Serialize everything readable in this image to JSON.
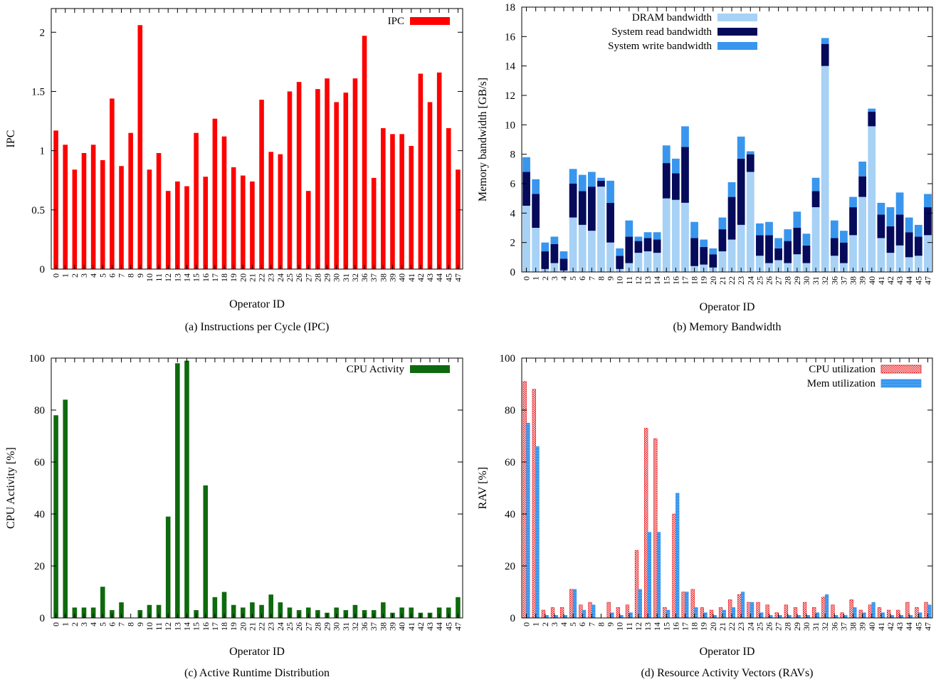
{
  "colors": {
    "ipc": "#ff0000",
    "dram": "#a7d1f5",
    "sys_read": "#050a5a",
    "sys_write": "#3996ee",
    "cpu_activity": "#0e6a0e",
    "cpu_util": "#e8161b",
    "mem_util": "#3996ee"
  },
  "chart_data": [
    {
      "id": "a",
      "type": "bar",
      "caption": "(a) Instructions per Cycle (IPC)",
      "xlabel": "Operator ID",
      "ylabel": "IPC",
      "ylim": [
        0,
        2.2
      ],
      "yticks": [
        0,
        0.5,
        1,
        1.5,
        2
      ],
      "ytick_labels": [
        "0",
        "0.5",
        "1",
        "1.5",
        "2"
      ],
      "legend_position": "top-right",
      "categories": [
        "0",
        "1",
        "2",
        "3",
        "4",
        "5",
        "6",
        "7",
        "8",
        "9",
        "10",
        "11",
        "12",
        "13",
        "14",
        "15",
        "16",
        "17",
        "18",
        "19",
        "20",
        "21",
        "22",
        "23",
        "24",
        "25",
        "26",
        "27",
        "28",
        "29",
        "30",
        "31",
        "32",
        "36",
        "37",
        "38",
        "39",
        "40",
        "41",
        "42",
        "43",
        "44",
        "45",
        "47"
      ],
      "series": [
        {
          "name": "IPC",
          "color_key": "ipc",
          "values": [
            1.17,
            1.05,
            0.84,
            0.98,
            1.05,
            0.92,
            1.44,
            0.87,
            1.15,
            2.06,
            0.84,
            0.98,
            0.66,
            0.74,
            0.7,
            1.15,
            0.78,
            1.27,
            1.12,
            0.86,
            0.79,
            0.74,
            1.43,
            0.99,
            0.97,
            1.5,
            1.58,
            0.66,
            1.52,
            1.61,
            1.41,
            1.49,
            1.61,
            1.97,
            0.77,
            1.19,
            1.14,
            1.14,
            1.04,
            1.65,
            1.41,
            1.66,
            1.19,
            0.84
          ]
        }
      ]
    },
    {
      "id": "b",
      "type": "bar",
      "stacked": true,
      "caption": "(b) Memory Bandwidth",
      "xlabel": "Operator ID",
      "ylabel": "Memory bandwidth [GB/s]",
      "ylim": [
        0,
        18
      ],
      "yticks": [
        0,
        2,
        4,
        6,
        8,
        10,
        12,
        14,
        16,
        18
      ],
      "ytick_labels": [
        "0",
        "2",
        "4",
        "6",
        "8",
        "10",
        "12",
        "14",
        "16",
        "18"
      ],
      "legend_position": "top",
      "categories": [
        "0",
        "1",
        "2",
        "3",
        "4",
        "5",
        "6",
        "7",
        "8",
        "9",
        "10",
        "11",
        "12",
        "13",
        "14",
        "15",
        "16",
        "17",
        "18",
        "19",
        "20",
        "21",
        "22",
        "23",
        "24",
        "25",
        "26",
        "27",
        "28",
        "29",
        "30",
        "31",
        "32",
        "36",
        "37",
        "38",
        "39",
        "40",
        "41",
        "42",
        "43",
        "44",
        "45",
        "47"
      ],
      "series": [
        {
          "name": "DRAM bandwidth",
          "color_key": "dram",
          "values": [
            4.5,
            3.0,
            0.2,
            0.6,
            0.1,
            3.7,
            3.2,
            2.8,
            5.8,
            2.0,
            0.2,
            0.6,
            1.3,
            1.4,
            1.3,
            5.0,
            4.9,
            4.7,
            0.4,
            0.5,
            0.3,
            1.4,
            2.2,
            3.2,
            6.8,
            1.1,
            0.6,
            0.8,
            0.6,
            1.2,
            0.6,
            4.4,
            14.0,
            1.1,
            0.6,
            2.5,
            5.1,
            9.9,
            2.3,
            1.3,
            1.8,
            1.0,
            1.1,
            2.5
          ]
        },
        {
          "name": "System read bandwidth",
          "color_key": "sys_read",
          "values": [
            2.3,
            2.3,
            1.2,
            1.3,
            0.8,
            2.3,
            2.3,
            3.0,
            0.4,
            2.7,
            0.9,
            1.8,
            0.8,
            0.9,
            0.9,
            2.4,
            1.8,
            3.8,
            1.9,
            1.2,
            0.9,
            1.5,
            2.9,
            4.5,
            1.2,
            1.4,
            1.9,
            0.8,
            1.5,
            1.8,
            1.2,
            1.1,
            1.5,
            1.2,
            1.4,
            1.9,
            1.4,
            1.0,
            1.6,
            1.8,
            2.1,
            1.7,
            1.3,
            1.9
          ]
        },
        {
          "name": "System write  bandwidth",
          "color_key": "sys_write",
          "values": [
            1.0,
            1.0,
            0.6,
            0.5,
            0.5,
            1.0,
            1.1,
            1.0,
            0.2,
            1.5,
            0.5,
            1.1,
            0.3,
            0.4,
            0.5,
            1.2,
            1.0,
            1.4,
            1.1,
            0.5,
            0.4,
            0.8,
            1.0,
            1.5,
            0.2,
            0.8,
            0.9,
            0.7,
            0.8,
            1.1,
            0.8,
            0.9,
            0.4,
            1.2,
            0.8,
            0.7,
            1.0,
            0.2,
            0.8,
            1.3,
            1.5,
            1.0,
            0.8,
            0.9
          ]
        }
      ]
    },
    {
      "id": "c",
      "type": "bar",
      "caption": "(c) Active Runtime Distribution",
      "xlabel": "Operator ID",
      "ylabel": "CPU Activity [%]",
      "ylim": [
        0,
        100
      ],
      "yticks": [
        0,
        20,
        40,
        60,
        80,
        100
      ],
      "ytick_labels": [
        "0",
        "20",
        "40",
        "60",
        "80",
        "100"
      ],
      "legend_position": "top-right",
      "categories": [
        "0",
        "1",
        "2",
        "3",
        "4",
        "5",
        "6",
        "7",
        "8",
        "9",
        "10",
        "11",
        "12",
        "13",
        "14",
        "15",
        "16",
        "17",
        "18",
        "19",
        "20",
        "21",
        "22",
        "23",
        "24",
        "25",
        "26",
        "27",
        "28",
        "29",
        "30",
        "31",
        "32",
        "36",
        "37",
        "38",
        "39",
        "40",
        "41",
        "42",
        "43",
        "44",
        "45",
        "47"
      ],
      "series": [
        {
          "name": "CPU Activity",
          "color_key": "cpu_activity",
          "values": [
            78,
            84,
            4,
            4,
            4,
            12,
            3,
            6,
            0,
            3,
            5,
            5,
            39,
            98,
            99,
            3,
            51,
            8,
            10,
            5,
            4,
            6,
            5,
            9,
            6,
            4,
            3,
            4,
            3,
            2,
            4,
            3,
            5,
            3,
            3,
            6,
            2,
            4,
            4,
            2,
            2,
            4,
            4,
            8
          ]
        }
      ]
    },
    {
      "id": "d",
      "type": "bar",
      "grouped": true,
      "caption": "(d) Resource Activity Vectors (RAVs)",
      "xlabel": "Operator ID",
      "ylabel": "RAV [%]",
      "ylim": [
        0,
        100
      ],
      "yticks": [
        0,
        20,
        40,
        60,
        80,
        100
      ],
      "ytick_labels": [
        "0",
        "20",
        "40",
        "60",
        "80",
        "100"
      ],
      "legend_position": "top-right",
      "categories": [
        "0",
        "1",
        "2",
        "3",
        "4",
        "5",
        "6",
        "7",
        "8",
        "9",
        "10",
        "11",
        "12",
        "13",
        "14",
        "15",
        "16",
        "17",
        "18",
        "19",
        "20",
        "21",
        "22",
        "23",
        "24",
        "25",
        "26",
        "27",
        "28",
        "29",
        "30",
        "31",
        "32",
        "36",
        "37",
        "38",
        "39",
        "40",
        "41",
        "42",
        "43",
        "44",
        "45",
        "47"
      ],
      "series": [
        {
          "name": "CPU utilization",
          "color_key": "cpu_util",
          "values": [
            91,
            88,
            3,
            4,
            4,
            11,
            5,
            6,
            0,
            6,
            4,
            5,
            26,
            73,
            69,
            4,
            40,
            10,
            11,
            4,
            3,
            4,
            7,
            9,
            6,
            6,
            5,
            2,
            5,
            4,
            6,
            4,
            8,
            5,
            2,
            7,
            3,
            5,
            4,
            3,
            3,
            6,
            4,
            6
          ]
        },
        {
          "name": "Mem utilization",
          "color_key": "mem_util",
          "values": [
            75,
            66,
            1,
            1,
            1,
            11,
            3,
            5,
            0,
            2,
            1,
            2,
            11,
            33,
            33,
            3,
            48,
            10,
            4,
            2,
            1,
            3,
            4,
            10,
            6,
            2,
            1,
            1,
            1,
            1,
            1,
            2,
            9,
            1,
            1,
            4,
            2,
            6,
            2,
            1,
            1,
            1,
            2,
            5
          ]
        }
      ]
    }
  ]
}
